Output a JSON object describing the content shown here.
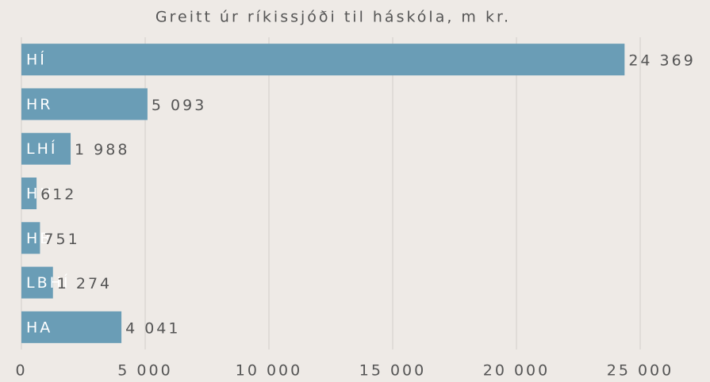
{
  "chart_data": {
    "type": "barh",
    "title": "Greitt úr ríkissjóði til háskóla, m kr.",
    "categories": [
      "HÍ",
      "HR",
      "LHÍ",
      "HH",
      "HB",
      "LBHÍ",
      "HA"
    ],
    "values": [
      24369,
      5093,
      1988,
      612,
      751,
      1274,
      4041
    ],
    "value_labels": [
      "24 369",
      "5 093",
      "1 988",
      "612",
      "751",
      "1 274",
      "4 041"
    ],
    "color": "#6a9db6",
    "xlim": [
      0,
      25000
    ],
    "xticks": [
      0,
      {
        "value": 5000,
        "label": "5 000"
      },
      {
        "value": 10000,
        "label": "10 000"
      },
      {
        "value": 15000,
        "label": "15 000"
      },
      {
        "value": 20000,
        "label": "20 000"
      },
      {
        "value": 25000,
        "label": "25 000"
      }
    ],
    "grid": true
  }
}
